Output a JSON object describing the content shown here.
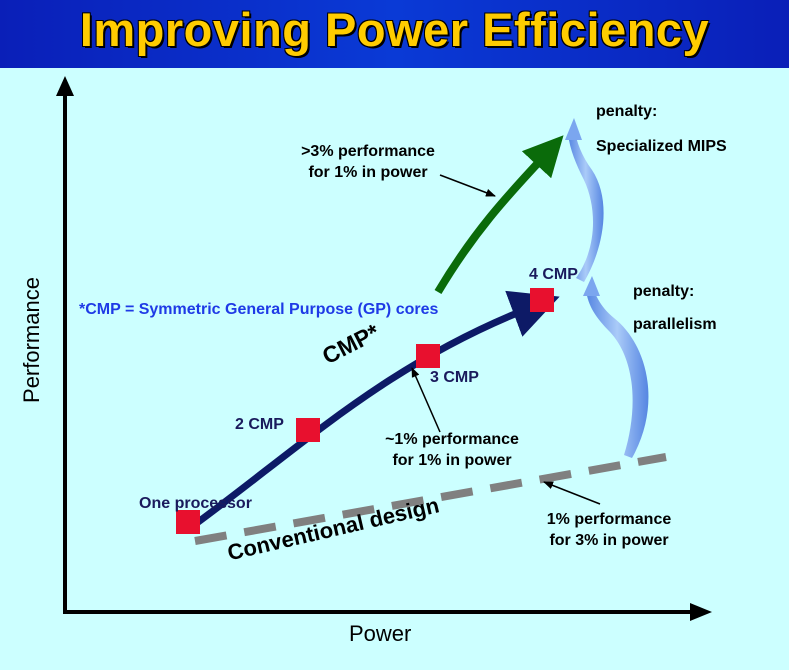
{
  "title": "Improving Power Efficiency",
  "axes": {
    "x_label": "Power",
    "y_label": "Performance"
  },
  "cmp_definition": "*CMP = Symmetric General Purpose (GP) cores",
  "curve_labels": {
    "cmp": "CMP*",
    "conventional": "Conventional design"
  },
  "points": [
    {
      "label": "One processor"
    },
    {
      "label": "2 CMP"
    },
    {
      "label": "3 CMP"
    },
    {
      "label": "4 CMP"
    }
  ],
  "annotations": {
    "specialized_gain": [
      ">3% performance",
      "for 1% in power"
    ],
    "cmp_gain": [
      "~1% performance",
      "for 1% in power"
    ],
    "conventional_gain": [
      "1% performance",
      "for 3% in power"
    ]
  },
  "penalties": {
    "mips": {
      "line1": "penalty:",
      "line2": "Specialized MIPS"
    },
    "parallelism": {
      "line1": "penalty:",
      "line2": "parallelism"
    }
  },
  "colors": {
    "background": "#ccffff",
    "banner": "#0a2ccc",
    "title": "#ffcc00",
    "cmp_curve": "#0d1a66",
    "specialized_curve": "#0a6b0a",
    "conventional_curve": "#808080",
    "points": "#e8102e",
    "penalty_arrows": "#7ba6ef"
  }
}
